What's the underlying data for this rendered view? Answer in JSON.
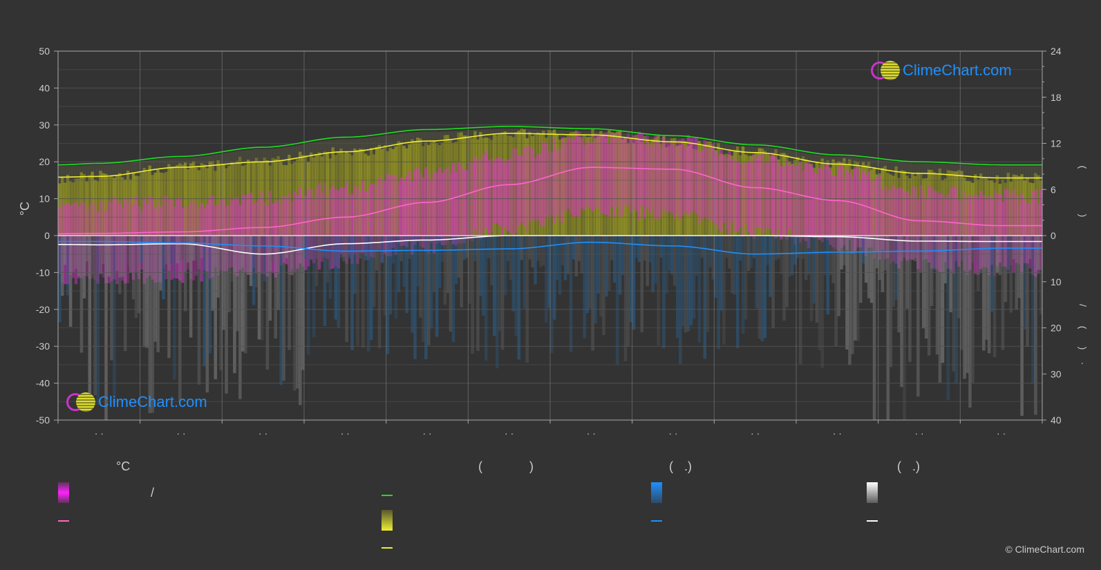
{
  "colors": {
    "background": "#333333",
    "grid": "#555555",
    "axis_text": "#cccccc",
    "daylight": "#22dd22",
    "sunshine": "#eeee33",
    "avg_temp": "#ff66cc",
    "rain": "#1e90ff",
    "snow": "#ffffff",
    "temp_band": "#dd33cc",
    "sun_band": "#aaaa22"
  },
  "chart_data": {
    "type": "line",
    "x_label_count": 12,
    "left_axis": {
      "title": "°C",
      "ticks": [
        "50",
        "40",
        "30",
        "20",
        "10",
        "0",
        "-10",
        "-20",
        "-30",
        "-40",
        "-50"
      ],
      "ylim": [
        -50,
        50
      ]
    },
    "right_axis_top": {
      "ticks": [
        "24",
        "18",
        "12",
        "6",
        "0"
      ],
      "ylim": [
        0,
        24
      ]
    },
    "right_axis_bottom": {
      "ticks": [
        "0",
        "10",
        "20",
        "30",
        "40"
      ],
      "ylim": [
        0,
        40
      ]
    },
    "right_axis_title_marks": [
      "(",
      ")",
      "/",
      "(",
      "·",
      ")"
    ],
    "x_month_fraction": [
      0.0,
      0.5,
      1.5,
      2.5,
      3.5,
      4.5,
      5.5,
      6.5,
      7.5,
      8.5,
      9.5,
      10.5,
      11.5,
      12.0
    ],
    "series": [
      {
        "key": "daylight",
        "axis": "hours",
        "values": [
          9.2,
          9.4,
          10.3,
          11.5,
          12.8,
          13.8,
          14.2,
          13.9,
          13.0,
          11.8,
          10.5,
          9.6,
          9.2,
          9.2
        ]
      },
      {
        "key": "sunshine",
        "axis": "hours",
        "values": [
          7.6,
          7.7,
          8.9,
          9.6,
          10.9,
          12.3,
          13.3,
          13.1,
          12.2,
          10.8,
          9.3,
          8.1,
          7.5,
          7.5
        ]
      },
      {
        "key": "avg_temp",
        "axis": "celsius",
        "values": [
          0.5,
          0.6,
          1.0,
          2.2,
          5.0,
          9.0,
          13.8,
          18.5,
          18.0,
          13.0,
          9.5,
          4.0,
          2.7,
          2.7
        ]
      },
      {
        "key": "snow",
        "axis": "celsius",
        "values": [
          -2.4,
          -2.5,
          -2.2,
          -5.0,
          -2.2,
          -1.2,
          0.0,
          0.0,
          0.0,
          0.0,
          -0.3,
          -1.5,
          -1.6,
          -1.6
        ]
      },
      {
        "key": "rain",
        "axis": "celsius",
        "values": [
          -1.6,
          -1.6,
          -2.0,
          -2.8,
          -4.2,
          -4.0,
          -3.6,
          -1.8,
          -2.8,
          -5.0,
          -4.5,
          -4.2,
          -3.4,
          -3.4
        ]
      }
    ]
  },
  "legend": {
    "col1": {
      "header": "°C",
      "separator": "/"
    },
    "col2": {
      "header_open": "(",
      "header_close": ")"
    },
    "col3": {
      "header_open": "(",
      "header_dot": ".)"
    },
    "col4": {
      "header_open": "(",
      "header_dot": ".)"
    }
  },
  "logo": {
    "text": "ClimeChart.com"
  },
  "copyright": "© ClimeChart.com"
}
